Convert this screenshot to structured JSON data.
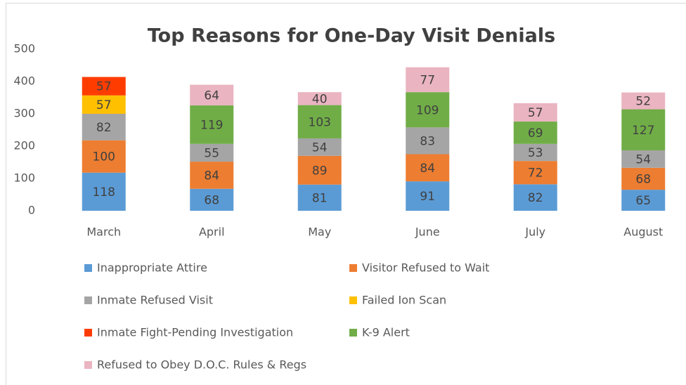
{
  "chart_data": {
    "type": "stacked_bar",
    "title": "Top Reasons for One-Day Visit Denials",
    "categories": [
      "March",
      "April",
      "May",
      "June",
      "July",
      "August"
    ],
    "series": [
      {
        "name": "Inappropriate Attire",
        "color": "#5b9bd5",
        "values": [
          118,
          68,
          81,
          91,
          82,
          65
        ]
      },
      {
        "name": "Visitor Refused to Wait",
        "color": "#ed7d31",
        "values": [
          100,
          84,
          89,
          84,
          72,
          68
        ]
      },
      {
        "name": "Inmate Refused Visit",
        "color": "#a5a5a5",
        "values": [
          82,
          55,
          54,
          83,
          53,
          54
        ]
      },
      {
        "name": "Failed Ion Scan",
        "color": "#ffc000",
        "values": [
          57,
          null,
          null,
          null,
          null,
          null
        ]
      },
      {
        "name": "Inmate Fight-Pending Investigation",
        "color": "#ff3c00",
        "values": [
          57,
          null,
          null,
          null,
          null,
          null
        ]
      },
      {
        "name": "K-9 Alert",
        "color": "#70ad47",
        "values": [
          null,
          119,
          103,
          109,
          69,
          127
        ]
      },
      {
        "name": "Refused to Obey D.O.C. Rules & Regs",
        "color": "#eab4c1",
        "values": [
          null,
          64,
          40,
          77,
          57,
          52
        ]
      }
    ],
    "ylim": [
      0,
      500
    ],
    "yticks": [
      0,
      100,
      200,
      300,
      400,
      500
    ],
    "grid": false
  }
}
